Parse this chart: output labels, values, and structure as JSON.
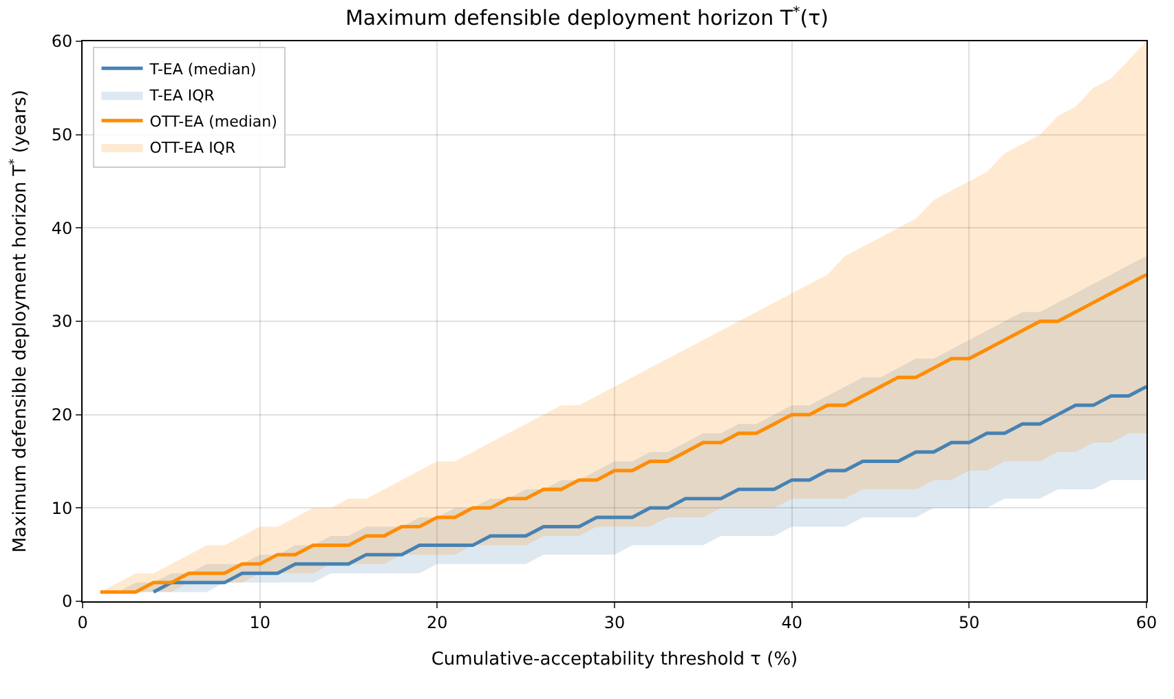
{
  "chart_data": {
    "type": "line",
    "title": "Maximum defensible deployment horizon T$^{*}$(τ)",
    "xlabel": "Cumulative-acceptability threshold τ (%)",
    "ylabel": "Maximum defensible deployment horizon T$^{*}$ (years)",
    "x": [
      1,
      2,
      3,
      4,
      5,
      6,
      7,
      8,
      9,
      10,
      11,
      12,
      13,
      14,
      15,
      16,
      17,
      18,
      19,
      20,
      21,
      22,
      23,
      24,
      25,
      26,
      27,
      28,
      29,
      30,
      31,
      32,
      33,
      34,
      35,
      36,
      37,
      38,
      39,
      40,
      41,
      42,
      43,
      44,
      45,
      46,
      47,
      48,
      49,
      50,
      51,
      52,
      53,
      54,
      55,
      56,
      57,
      58,
      59,
      60
    ],
    "series": [
      {
        "name": "T-EA (median)",
        "color": "#4682b4",
        "values": [
          null,
          null,
          null,
          1,
          2,
          2,
          2,
          2,
          3,
          3,
          3,
          4,
          4,
          4,
          4,
          5,
          5,
          5,
          6,
          6,
          6,
          6,
          7,
          7,
          7,
          8,
          8,
          8,
          9,
          9,
          9,
          10,
          10,
          11,
          11,
          11,
          12,
          12,
          12,
          13,
          13,
          14,
          14,
          15,
          15,
          15,
          16,
          16,
          17,
          17,
          18,
          18,
          19,
          19,
          20,
          21,
          21,
          22,
          22,
          23
        ]
      },
      {
        "name": "T-EA IQR",
        "color": "#4682b4",
        "values": [
          null,
          null,
          null,
          null,
          null,
          null,
          null,
          null,
          null,
          null,
          null,
          null,
          null,
          null,
          null,
          null,
          null,
          null,
          null,
          null,
          null,
          null,
          null,
          null,
          null,
          null,
          null,
          null,
          null,
          null,
          null,
          null,
          null,
          null,
          null,
          null,
          null,
          null,
          null,
          null,
          null,
          null,
          null,
          null,
          null,
          null,
          null,
          null,
          null,
          null,
          null,
          null,
          null,
          null,
          null,
          null,
          null,
          null,
          null,
          null
        ],
        "lower": [
          1,
          1,
          1,
          1,
          1,
          1,
          1,
          2,
          2,
          2,
          2,
          2,
          2,
          3,
          3,
          3,
          3,
          3,
          3,
          4,
          4,
          4,
          4,
          4,
          4,
          5,
          5,
          5,
          5,
          5,
          6,
          6,
          6,
          6,
          6,
          7,
          7,
          7,
          7,
          8,
          8,
          8,
          8,
          9,
          9,
          9,
          9,
          10,
          10,
          10,
          10,
          11,
          11,
          11,
          12,
          12,
          12,
          13,
          13,
          13
        ],
        "upper": [
          1,
          1,
          2,
          2,
          3,
          3,
          4,
          4,
          4,
          5,
          5,
          6,
          6,
          7,
          7,
          8,
          8,
          8,
          9,
          9,
          10,
          10,
          11,
          11,
          12,
          12,
          13,
          13,
          14,
          15,
          15,
          16,
          16,
          17,
          18,
          18,
          19,
          19,
          20,
          21,
          21,
          22,
          23,
          24,
          24,
          25,
          26,
          26,
          27,
          28,
          29,
          30,
          31,
          31,
          32,
          33,
          34,
          35,
          36,
          37
        ]
      },
      {
        "name": "OTT-EA (median)",
        "color": "#ff8c00",
        "values": [
          1,
          1,
          1,
          2,
          2,
          3,
          3,
          3,
          4,
          4,
          5,
          5,
          6,
          6,
          6,
          7,
          7,
          8,
          8,
          9,
          9,
          10,
          10,
          11,
          11,
          12,
          12,
          13,
          13,
          14,
          14,
          15,
          15,
          16,
          17,
          17,
          18,
          18,
          19,
          20,
          20,
          21,
          21,
          22,
          23,
          24,
          24,
          25,
          26,
          26,
          27,
          28,
          29,
          30,
          30,
          31,
          32,
          33,
          34,
          35
        ]
      },
      {
        "name": "OTT-EA IQR",
        "color": "#ff8c00",
        "values": [
          null,
          null,
          null,
          null,
          null,
          null,
          null,
          null,
          null,
          null,
          null,
          null,
          null,
          null,
          null,
          null,
          null,
          null,
          null,
          null,
          null,
          null,
          null,
          null,
          null,
          null,
          null,
          null,
          null,
          null,
          null,
          null,
          null,
          null,
          null,
          null,
          null,
          null,
          null,
          null,
          null,
          null,
          null,
          null,
          null,
          null,
          null,
          null,
          null,
          null,
          null,
          null,
          null,
          null,
          null,
          null,
          null,
          null,
          null,
          null
        ],
        "lower": [
          1,
          1,
          1,
          1,
          1,
          2,
          2,
          2,
          2,
          3,
          3,
          3,
          3,
          4,
          4,
          4,
          4,
          5,
          5,
          5,
          5,
          6,
          6,
          6,
          6,
          7,
          7,
          7,
          8,
          8,
          8,
          8,
          9,
          9,
          9,
          10,
          10,
          10,
          10,
          11,
          11,
          11,
          11,
          12,
          12,
          12,
          12,
          13,
          13,
          14,
          14,
          15,
          15,
          15,
          16,
          16,
          17,
          17,
          18,
          18
        ],
        "upper": [
          1,
          2,
          3,
          3,
          4,
          5,
          6,
          6,
          7,
          8,
          8,
          9,
          10,
          10,
          11,
          11,
          12,
          13,
          14,
          15,
          15,
          16,
          17,
          18,
          19,
          20,
          21,
          21,
          22,
          23,
          24,
          25,
          26,
          27,
          28,
          29,
          30,
          31,
          32,
          33,
          34,
          35,
          37,
          38,
          39,
          40,
          41,
          43,
          44,
          45,
          46,
          48,
          49,
          50,
          52,
          53,
          55,
          56,
          58,
          60
        ]
      }
    ],
    "xlim": [
      0,
      60
    ],
    "xticks": [
      0,
      10,
      20,
      30,
      40,
      50,
      60
    ],
    "ylim": [
      0,
      60
    ],
    "yticks": [
      0,
      10,
      20,
      30,
      40,
      50,
      60
    ],
    "grid": true,
    "legend": "top left",
    "line_style": "solid",
    "marker": "none"
  }
}
